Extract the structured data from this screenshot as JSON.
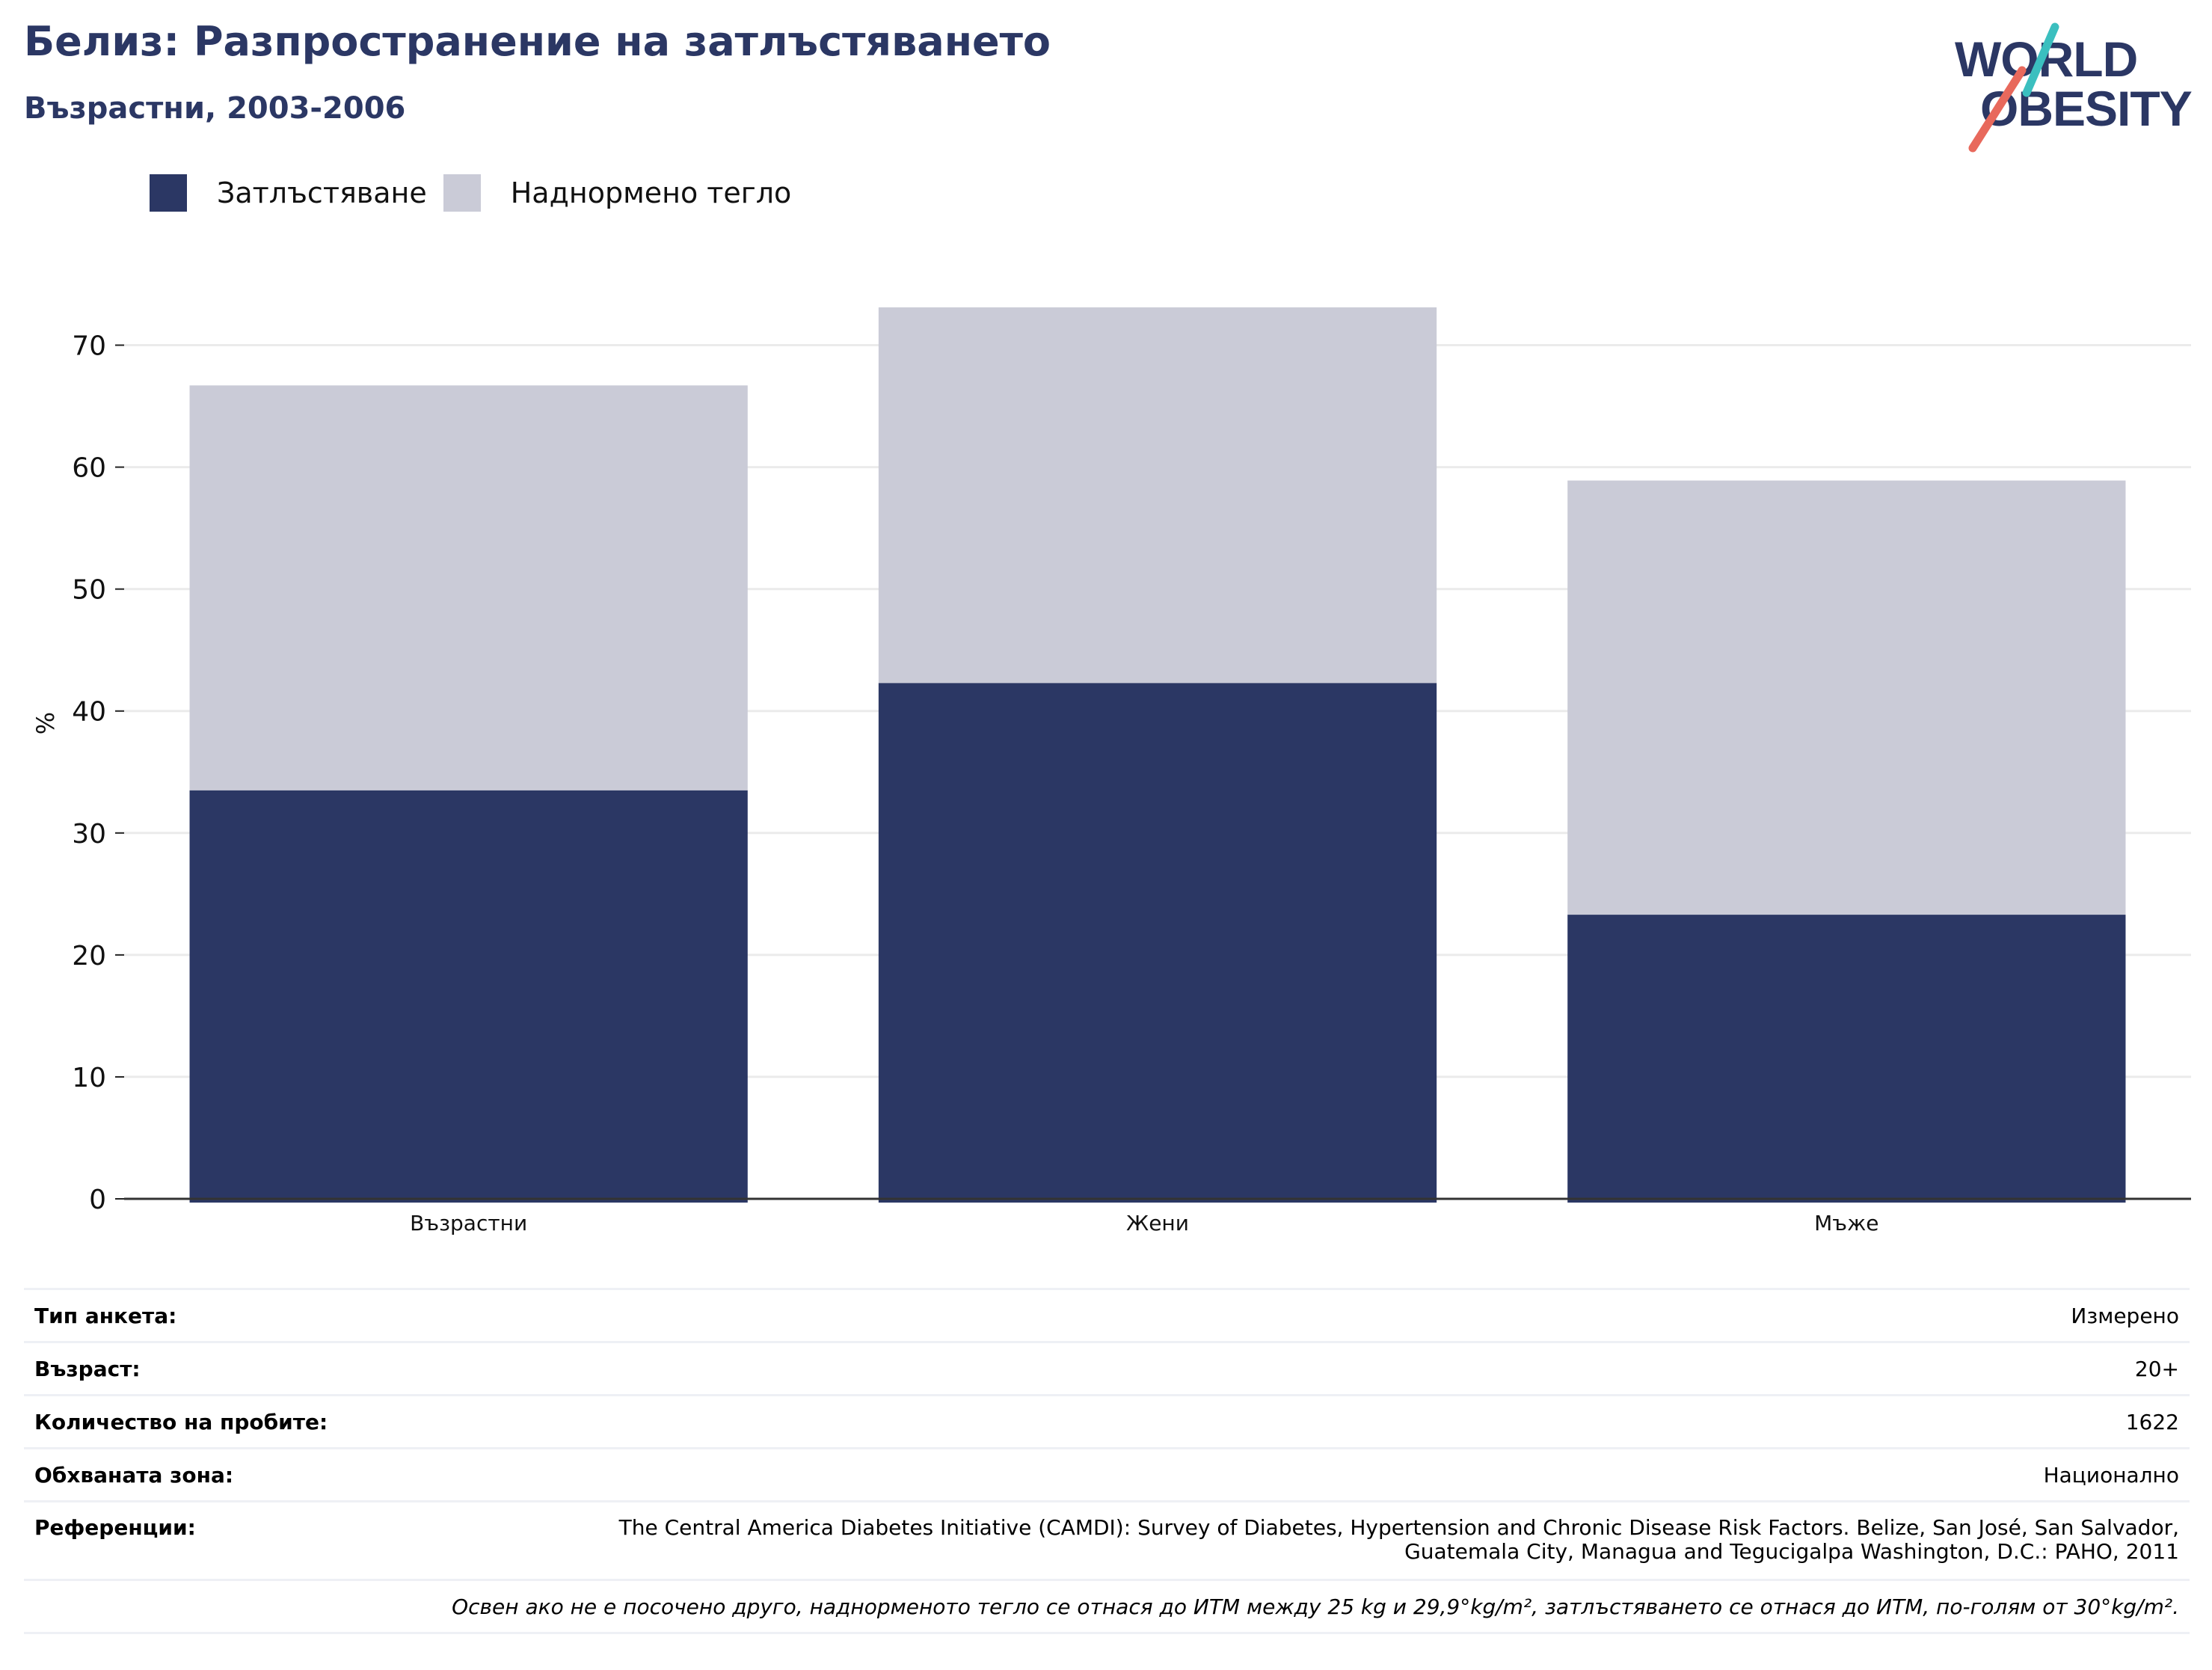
{
  "header": {
    "title": "Белиз: Разпространение на затлъстяването",
    "subtitle": "Възрастни, 2003-2006"
  },
  "logo": {
    "line1": "WORLD",
    "line2": "OBESITY",
    "colors": {
      "text": "#2b3764",
      "accent_teal": "#3bbfbf",
      "accent_coral": "#e8695c"
    }
  },
  "chart_data": {
    "type": "bar",
    "stacked": true,
    "categories": [
      "Възрастни",
      "Жени",
      "Мъже"
    ],
    "series": [
      {
        "name": "Затлъстяване",
        "values": [
          33.5,
          42.3,
          23.3
        ],
        "color": "#2b3764"
      },
      {
        "name": "Наднормено тегло",
        "values": [
          33.2,
          30.8,
          35.6
        ],
        "color": "#cacbd7"
      }
    ],
    "ylabel": "%",
    "xlabel": "",
    "ylim": [
      0,
      75
    ],
    "yticks": [
      0,
      10,
      20,
      30,
      40,
      50,
      60,
      70
    ],
    "grid": true,
    "legend": "top-left"
  },
  "info": {
    "rows": [
      {
        "label": "Тип анкета:",
        "value": "Измерено"
      },
      {
        "label": "Възраст:",
        "value": "20+"
      },
      {
        "label": "Количество на пробите:",
        "value": "1622"
      },
      {
        "label": "Обхваната зона:",
        "value": "Национално"
      },
      {
        "label": "Референции:",
        "value": "The Central America Diabetes Initiative (CAMDI): Survey of Diabetes, Hypertension and Chronic Disease Risk Factors. Belize, San José, San Salvador, Guatemala City, Managua and Tegucigalpa Washington, D.C.: PAHO, 2011"
      }
    ],
    "note": "Освен ако не е посочено друго, наднорменото тегло се отнася до ИТМ между 25 kg и 29,9°kg/m², затлъстяването се отнася до ИТМ, по-голям от 30°kg/m²."
  }
}
